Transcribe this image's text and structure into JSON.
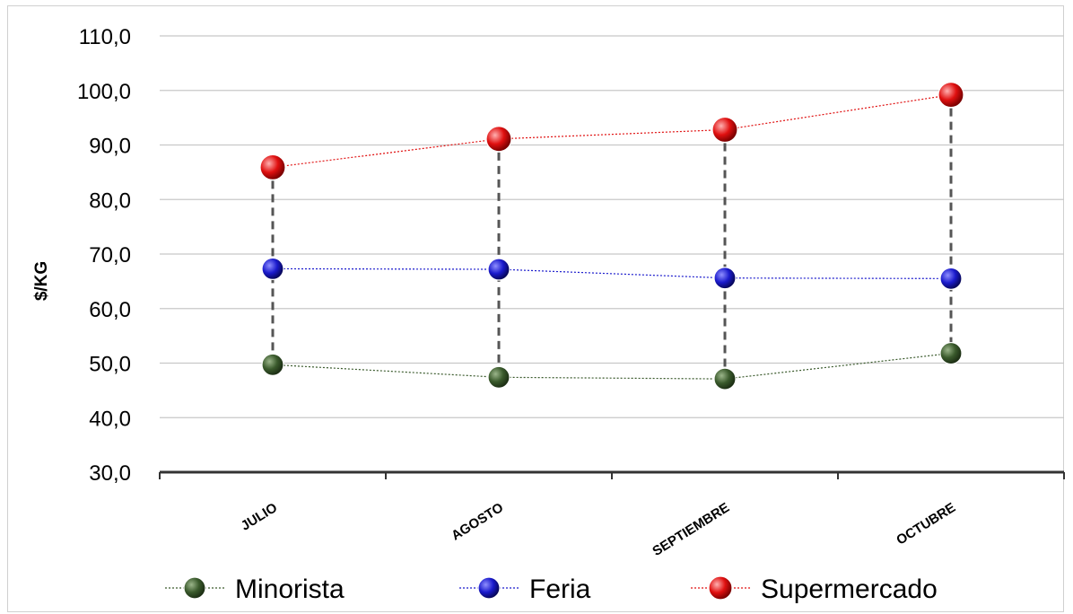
{
  "chart_data": {
    "type": "line",
    "title": "",
    "xlabel": "",
    "ylabel": "$/KG",
    "ylim": [
      30,
      110
    ],
    "yticks": [
      "30,0",
      "40,0",
      "50,0",
      "60,0",
      "70,0",
      "80,0",
      "90,0",
      "100,0",
      "110,0"
    ],
    "categories": [
      "JULIO",
      "AGOSTO",
      "SEPTIEMBRE",
      "OCTUBRE"
    ],
    "grid": true,
    "legend_position": "bottom",
    "high_low_lines": true,
    "series": [
      {
        "name": "Minorista",
        "values": [
          49.7,
          47.4,
          47.1,
          51.8
        ],
        "color": "#3a5a2c",
        "line_style": "dotted"
      },
      {
        "name": "Feria",
        "values": [
          67.3,
          67.2,
          65.6,
          65.5
        ],
        "color": "#1a1acc",
        "line_style": "dotted"
      },
      {
        "name": "Supermercado",
        "values": [
          85.9,
          91.1,
          92.8,
          99.2
        ],
        "color": "#e01010",
        "line_style": "dotted"
      }
    ]
  }
}
